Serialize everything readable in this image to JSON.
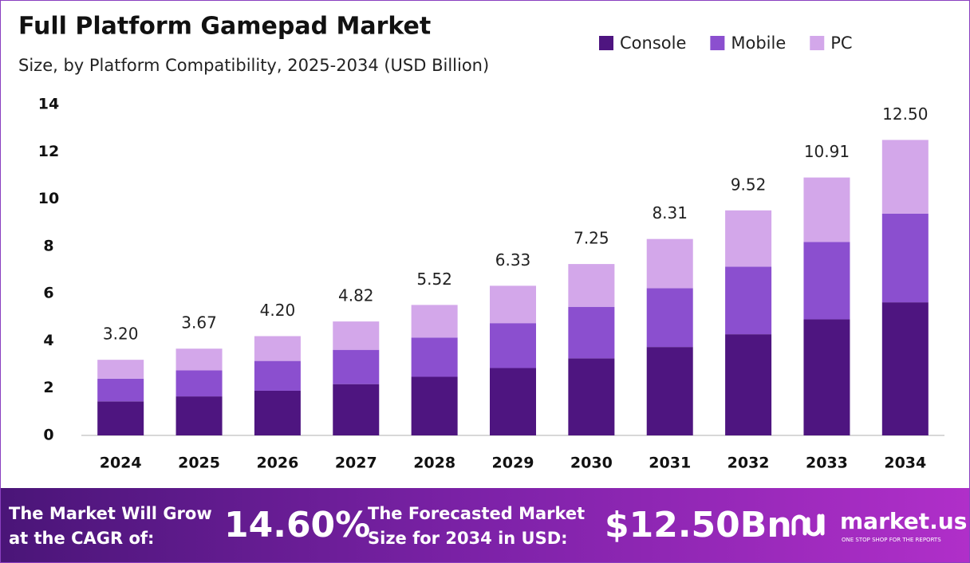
{
  "chart_data": {
    "type": "stacked_bar",
    "title": "Full Platform Gamepad Market",
    "subtitle": "Size, by Platform Compatibility, 2025-2034 (USD Billion)",
    "categories": [
      "2024",
      "2025",
      "2026",
      "2027",
      "2028",
      "2029",
      "2030",
      "2031",
      "2032",
      "2033",
      "2034"
    ],
    "series": [
      {
        "name": "Console",
        "color": "#4e1580",
        "values": [
          1.44,
          1.65,
          1.89,
          2.17,
          2.48,
          2.85,
          3.26,
          3.74,
          4.28,
          4.91,
          5.63
        ]
      },
      {
        "name": "Mobile",
        "color": "#8b4fcf",
        "values": [
          0.96,
          1.1,
          1.26,
          1.45,
          1.66,
          1.9,
          2.18,
          2.49,
          2.86,
          3.27,
          3.75
        ]
      },
      {
        "name": "PC",
        "color": "#d3a7ea",
        "values": [
          0.8,
          0.92,
          1.05,
          1.2,
          1.38,
          1.58,
          1.81,
          2.08,
          2.38,
          2.73,
          3.12
        ]
      }
    ],
    "totals": {
      "values": [
        3.2,
        3.67,
        4.2,
        4.82,
        5.52,
        6.33,
        7.25,
        8.31,
        9.52,
        10.91,
        12.5
      ],
      "value_labels": [
        "3.20",
        "3.67",
        "4.20",
        "4.82",
        "5.52",
        "6.33",
        "7.25",
        "8.31",
        "9.52",
        "10.91",
        "12.50"
      ]
    },
    "ylim": [
      0,
      14
    ],
    "yticks": [
      0,
      2,
      4,
      6,
      8,
      10,
      12,
      14
    ],
    "grid": false,
    "legend": "top-right"
  },
  "footer": {
    "cagr_text": [
      "The Market Will Grow",
      "at the CAGR of:"
    ],
    "cagr_value": "14.60%",
    "forecast_text": [
      "The Forecasted Market",
      "Size for 2034 in USD:"
    ],
    "forecast_value": "$12.50Bn",
    "brand": "market.us",
    "tagline": "ONE STOP SHOP FOR THE REPORTS"
  }
}
